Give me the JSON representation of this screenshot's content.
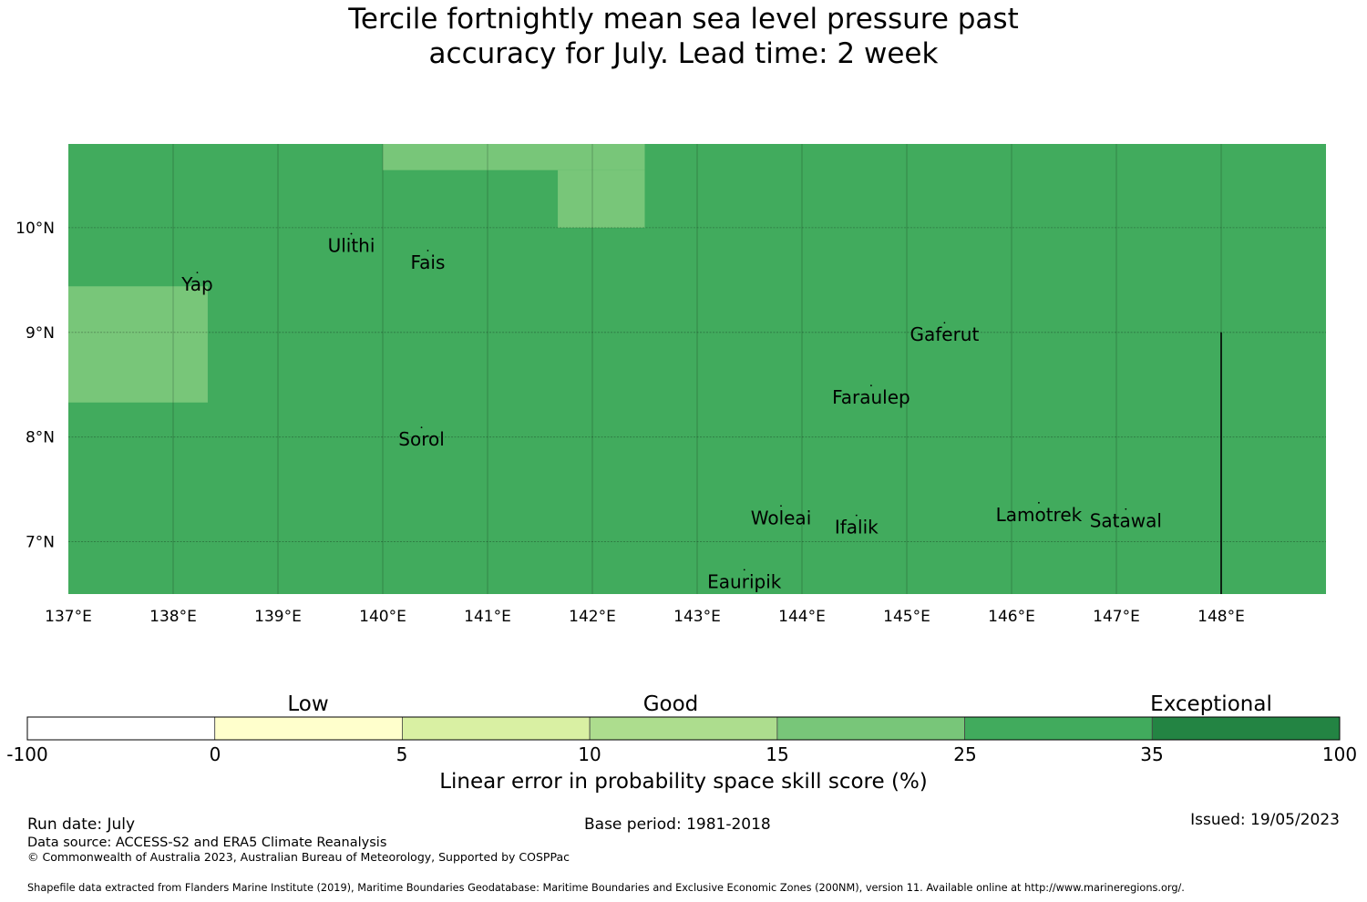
{
  "title_line1": "Tercile fortnightly mean sea level pressure past",
  "title_line2": "accuracy for July. Lead time: 2 week",
  "map": {
    "lon_range": [
      137,
      149
    ],
    "lat_range": [
      6.5,
      10.8
    ],
    "lon_ticks": [
      "137°E",
      "138°E",
      "139°E",
      "140°E",
      "141°E",
      "142°E",
      "143°E",
      "144°E",
      "145°E",
      "146°E",
      "147°E",
      "148°E"
    ],
    "lat_ticks": [
      "10°N",
      "9°N",
      "8°N",
      "7°N"
    ],
    "background_color": "#41ab5d",
    "regions": [
      {
        "category": "15-25",
        "color": "#78c679",
        "lon": [
          140.0,
          142.5
        ],
        "lat": [
          10.55,
          10.8
        ]
      },
      {
        "category": "15-25",
        "color": "#78c679",
        "lon": [
          141.67,
          142.5
        ],
        "lat": [
          10.0,
          10.55
        ]
      },
      {
        "category": "15-25",
        "color": "#78c679",
        "lon": [
          137.0,
          138.33
        ],
        "lat": [
          8.33,
          9.44
        ]
      }
    ],
    "boundary_line": {
      "lon": 148.0,
      "lat": [
        6.5,
        9.0
      ]
    },
    "islands": [
      {
        "name": "Ulithi",
        "lon": 139.7,
        "lat": 9.82
      },
      {
        "name": "Fais",
        "lon": 140.43,
        "lat": 9.66
      },
      {
        "name": "Yap",
        "lon": 138.23,
        "lat": 9.45
      },
      {
        "name": "Gaferut",
        "lon": 145.36,
        "lat": 8.97
      },
      {
        "name": "Faraulep",
        "lon": 144.66,
        "lat": 8.37
      },
      {
        "name": "Sorol",
        "lon": 140.37,
        "lat": 7.97
      },
      {
        "name": "Woleai",
        "lon": 143.8,
        "lat": 7.22
      },
      {
        "name": "Ifalik",
        "lon": 144.52,
        "lat": 7.13
      },
      {
        "name": "Lamotrek",
        "lon": 146.26,
        "lat": 7.25
      },
      {
        "name": "Satawal",
        "lon": 147.09,
        "lat": 7.19
      },
      {
        "name": "Eauripik",
        "lon": 143.45,
        "lat": 6.61
      }
    ]
  },
  "colorbar": {
    "categories": [
      "Low",
      "Good",
      "Exceptional"
    ],
    "ticks": [
      "-100",
      "0",
      "5",
      "10",
      "15",
      "25",
      "35",
      "100"
    ],
    "colors": [
      "#ffffff",
      "#ffffcc",
      "#d9f0a3",
      "#addd8e",
      "#78c679",
      "#41ab5d",
      "#238443"
    ],
    "label": "Linear error in probability space skill score (%)"
  },
  "footer": {
    "run_date": "Run date: July",
    "base_period": "Base period: 1981-2018",
    "issued": "Issued: 19/05/2023",
    "data_source": "Data source: ACCESS-S2 and ERA5 Climate Reanalysis",
    "copyright": "© Commonwealth of Australia 2023, Australian Bureau of Meteorology, Supported by COSPPac",
    "shapefile": "Shapefile data extracted from Flanders Marine Institute (2019), Maritime Boundaries Geodatabase: Maritime Boundaries and Exclusive Economic Zones (200NM), version 11. Available online at http://www.marineregions.org/."
  }
}
